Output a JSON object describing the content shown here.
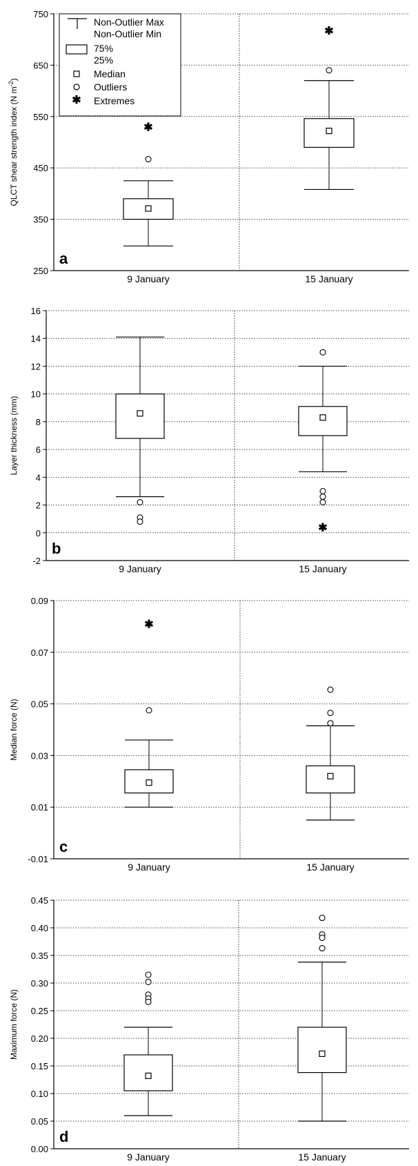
{
  "legend": {
    "whisker_max": "Non-Outlier Max",
    "whisker_min": "Non-Outlier Min",
    "box_top": "75%",
    "box_bottom": "25%",
    "median": "Median",
    "outliers": "Outliers",
    "extremes": "Extremes"
  },
  "chart_data": [
    {
      "type": "box",
      "panel_label": "a",
      "ylabel": "QLCT shear strength index (N m",
      "ylabel_sup": "-2",
      "ylabel_close": ")",
      "ylim": [
        250,
        750
      ],
      "yticks": [
        "250",
        "350",
        "450",
        "550",
        "650",
        "750"
      ],
      "grid": "dotted",
      "categories": [
        "9 January",
        "15 January"
      ],
      "boxes": [
        {
          "category": "9 January",
          "whisker_min": 298,
          "q1": 350,
          "median": 371,
          "q3": 390,
          "whisker_max": 425,
          "outliers": [
            467
          ],
          "extremes": [
            530
          ]
        },
        {
          "category": "15 January",
          "whisker_min": 408,
          "q1": 490,
          "median": 522,
          "q3": 546,
          "whisker_max": 620,
          "outliers": [
            640
          ],
          "extremes": [
            718
          ]
        }
      ]
    },
    {
      "type": "box",
      "panel_label": "b",
      "ylabel": "Layer thickness (mm)",
      "ylim": [
        -2,
        16
      ],
      "yticks": [
        "-2",
        "0",
        "2",
        "4",
        "6",
        "8",
        "10",
        "12",
        "14",
        "16"
      ],
      "grid": "dotted",
      "categories": [
        "9 January",
        "15 January"
      ],
      "boxes": [
        {
          "category": "9 January",
          "whisker_min": 2.6,
          "q1": 6.8,
          "median": 8.6,
          "q3": 10.0,
          "whisker_max": 14.1,
          "outliers": [
            2.2,
            1.1,
            0.8
          ],
          "extremes": []
        },
        {
          "category": "15 January",
          "whisker_min": 4.4,
          "q1": 7.0,
          "median": 8.3,
          "q3": 9.1,
          "whisker_max": 12.0,
          "outliers": [
            13.0,
            3.0,
            2.6,
            2.2
          ],
          "extremes": [
            0.4
          ]
        }
      ]
    },
    {
      "type": "box",
      "panel_label": "c",
      "ylabel": "Median force (N)",
      "ylim": [
        -0.01,
        0.09
      ],
      "yticks": [
        "-0.01",
        "0.01",
        "0.03",
        "0.05",
        "0.07",
        "0.09"
      ],
      "grid": "dotted",
      "categories": [
        "9 January",
        "15 January"
      ],
      "boxes": [
        {
          "category": "9 January",
          "whisker_min": 0.01,
          "q1": 0.0155,
          "median": 0.0195,
          "q3": 0.0245,
          "whisker_max": 0.036,
          "outliers": [
            0.0475
          ],
          "extremes": [
            0.081
          ]
        },
        {
          "category": "15 January",
          "whisker_min": 0.005,
          "q1": 0.0155,
          "median": 0.022,
          "q3": 0.026,
          "whisker_max": 0.0415,
          "outliers": [
            0.0555,
            0.0465,
            0.0425
          ],
          "extremes": []
        }
      ]
    },
    {
      "type": "box",
      "panel_label": "d",
      "ylabel": "Maximum force (N)",
      "ylim": [
        0.0,
        0.45
      ],
      "yticks": [
        "0.00",
        "0.05",
        "0.10",
        "0.15",
        "0.20",
        "0.25",
        "0.30",
        "0.35",
        "0.40",
        "0.45"
      ],
      "grid": "dotted",
      "categories": [
        "9 January",
        "15 January"
      ],
      "boxes": [
        {
          "category": "9 January",
          "whisker_min": 0.06,
          "q1": 0.105,
          "median": 0.132,
          "q3": 0.17,
          "whisker_max": 0.22,
          "outliers": [
            0.315,
            0.302,
            0.279,
            0.272,
            0.266
          ],
          "extremes": []
        },
        {
          "category": "15 January",
          "whisker_min": 0.05,
          "q1": 0.138,
          "median": 0.172,
          "q3": 0.22,
          "whisker_max": 0.338,
          "outliers": [
            0.418,
            0.388,
            0.382,
            0.363
          ],
          "extremes": []
        }
      ]
    }
  ]
}
